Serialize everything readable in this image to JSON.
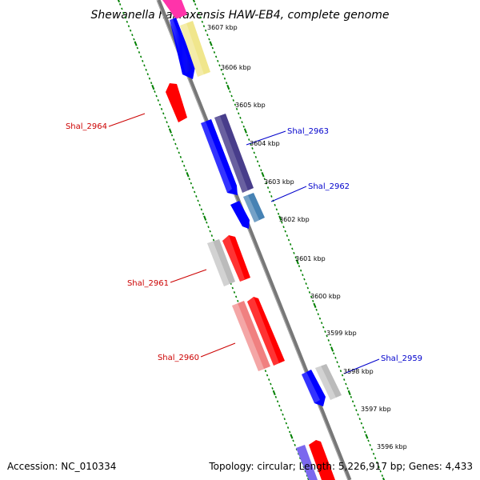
{
  "title": "Shewanella halifaxensis HAW-EB4, complete genome",
  "footer": {
    "accession": "Accession: NC_010334",
    "topology": "Topology: circular; Length: 5,226,917 bp; Genes: 4,433"
  },
  "colors": {
    "backbone": "#777777",
    "tick": "#008000",
    "forward_label": "#0000cc",
    "reverse_label": "#cc0000"
  },
  "position_ticks_kbp": [
    {
      "kbp": 3607,
      "label": "3607 kbp"
    },
    {
      "kbp": 3606,
      "label": "3606 kbp"
    },
    {
      "kbp": 3605,
      "label": "3605 kbp"
    },
    {
      "kbp": 3604,
      "label": "3604 kbp"
    },
    {
      "kbp": 3603,
      "label": "3603 kbp"
    },
    {
      "kbp": 3602,
      "label": "3602 kbp"
    },
    {
      "kbp": 3601,
      "label": "3601 kbp"
    },
    {
      "kbp": 3600,
      "label": "3600 kbp"
    },
    {
      "kbp": 3599,
      "label": "3599 kbp"
    },
    {
      "kbp": 3598,
      "label": "3598 kbp"
    },
    {
      "kbp": 3597,
      "label": "3597 kbp"
    },
    {
      "kbp": 3596,
      "label": "3596 kbp"
    }
  ],
  "gene_labels": [
    {
      "name": "Shal_2964",
      "strand": "reverse"
    },
    {
      "name": "Shal_2963",
      "strand": "forward"
    },
    {
      "name": "Shal_2962",
      "strand": "forward"
    },
    {
      "name": "Shal_2961",
      "strand": "reverse"
    },
    {
      "name": "Shal_2960",
      "strand": "reverse"
    },
    {
      "name": "Shal_2959",
      "strand": "forward"
    }
  ],
  "features": [
    {
      "type": "gene",
      "color": "#ff33aa",
      "lane": "f1"
    },
    {
      "type": "gene",
      "color": "#0000ff",
      "lane": "f1"
    },
    {
      "type": "gene",
      "color": "#f0e68c",
      "lane": "f2"
    },
    {
      "type": "gene",
      "color": "#ff0000",
      "lane": "r1"
    },
    {
      "type": "gene",
      "color": "#0000ff",
      "lane": "f1"
    },
    {
      "type": "gene",
      "color": "#483d8b",
      "lane": "f2"
    },
    {
      "type": "gene",
      "color": "#0000ff",
      "lane": "f1"
    },
    {
      "type": "gene",
      "color": "#4682b4",
      "lane": "f2"
    },
    {
      "type": "gene",
      "color": "#ff0000",
      "lane": "r1"
    },
    {
      "type": "gene",
      "color": "#bbbbbb",
      "lane": "r2"
    },
    {
      "type": "gene",
      "color": "#ff0000",
      "lane": "r1"
    },
    {
      "type": "gene",
      "color": "#f08080",
      "lane": "r2"
    },
    {
      "type": "gene",
      "color": "#0000ff",
      "lane": "f1"
    },
    {
      "type": "gene",
      "color": "#bbbbbb",
      "lane": "f2"
    },
    {
      "type": "gene",
      "color": "#7b68ee",
      "lane": "f1"
    },
    {
      "type": "gene",
      "color": "#ff0000",
      "lane": "f2"
    }
  ]
}
